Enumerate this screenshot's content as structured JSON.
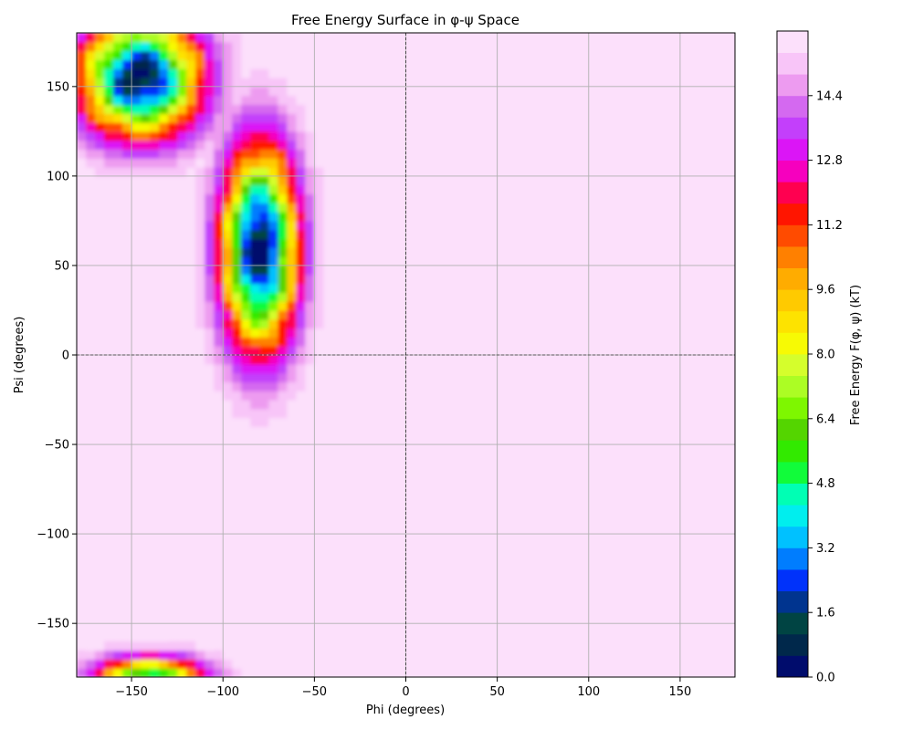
{
  "chart_data": {
    "type": "heatmap",
    "title": "Free Energy Surface in φ-ψ Space",
    "xlabel": "Phi (degrees)",
    "ylabel": "Psi (degrees)",
    "xlim": [
      -180,
      180
    ],
    "ylim": [
      -180,
      180
    ],
    "xticks": [
      -150,
      -100,
      -50,
      0,
      50,
      100,
      150
    ],
    "yticks": [
      -150,
      -100,
      -50,
      0,
      50,
      100,
      150
    ],
    "grid": true,
    "reference_lines": {
      "x": 0,
      "y": 0,
      "style": "dashed"
    },
    "colorbar": {
      "label": "Free Energy F(φ, ψ) (kT)",
      "range": [
        0,
        16
      ],
      "ticks": [
        0.0,
        1.6,
        3.2,
        4.8,
        6.4,
        8.0,
        9.6,
        11.2,
        12.8,
        14.4
      ],
      "levels": 30,
      "colormap": "gist_ncar"
    },
    "background_value_kT": 16,
    "basins": [
      {
        "label_shown": false,
        "phi": -145,
        "psi": 155,
        "min_kT": 0.3
      },
      {
        "label_shown": false,
        "phi": -80,
        "psi": 60,
        "min_kT": 0.3
      },
      {
        "label_shown": false,
        "phi": -140,
        "psi": -180,
        "min_kT": 2.5
      }
    ],
    "colors": {
      "frame": "#000000",
      "grid": "#b0b0b0",
      "background_fill": "#fdeafc"
    }
  }
}
